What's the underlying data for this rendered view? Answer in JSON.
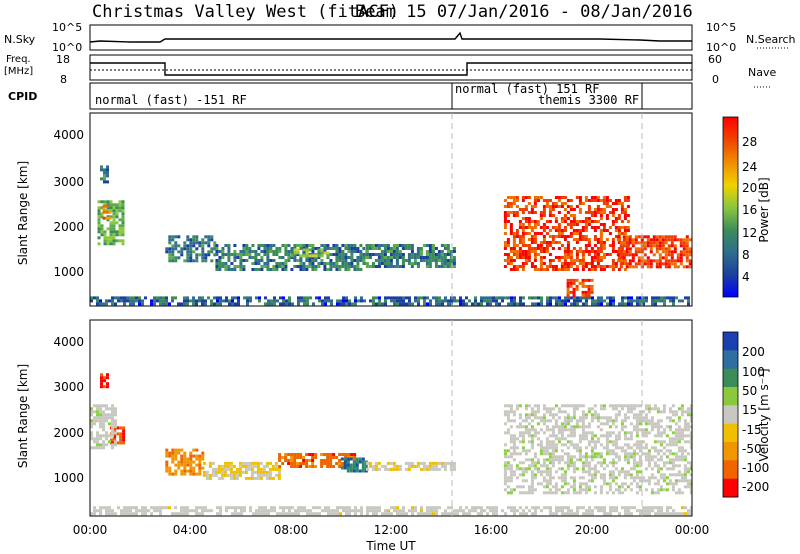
{
  "header": {
    "title_left": "Christmas Valley West (fitACF)",
    "title_right": "Beam 15  07/Jan/2016 - 08/Jan/2016"
  },
  "strip_nsky": {
    "left_label": "N.Sky",
    "ticks_left": [
      "10^5",
      "10^0"
    ],
    "right_label": "N.Search",
    "ticks_right": [
      "10^5",
      "10^0"
    ]
  },
  "strip_freq": {
    "left_label_1": "Freq.",
    "left_label_2": "[MHz]",
    "ticks_left": [
      "18",
      "8"
    ],
    "right_label": "Nave",
    "ticks_right": [
      "60",
      "0"
    ]
  },
  "strip_cpid": {
    "label": "CPID",
    "segments": [
      {
        "text": "normal (fast) -151 RF",
        "start_hour": 0,
        "end_hour": 14.5
      },
      {
        "text": "normal (fast) 151 RF",
        "start_hour": 14.5,
        "end_hour": 22
      },
      {
        "text": "themis 3300 RF",
        "start_hour": 17.8,
        "end_hour": 22
      }
    ]
  },
  "panels": {
    "power": {
      "ylabel": "Slant Range [km]",
      "yticks": [
        "4000",
        "3000",
        "2000",
        "1000"
      ],
      "cbar_label": "Power [dB]",
      "cbar_ticks": [
        "28",
        "24",
        "20",
        "16",
        "12",
        "8",
        "4"
      ]
    },
    "velocity": {
      "ylabel": "Slant Range [km]",
      "yticks": [
        "4000",
        "3000",
        "2000",
        "1000"
      ],
      "cbar_label": "Velocity [m s⁻¹]",
      "cbar_ticks": [
        "200",
        "100",
        "50",
        "15",
        "-15",
        "-50",
        "-100",
        "-200"
      ]
    }
  },
  "xaxis": {
    "label": "Time UT",
    "ticks": [
      "00:00",
      "04:00",
      "08:00",
      "12:00",
      "16:00",
      "20:00",
      "00:00"
    ]
  },
  "colors": {
    "power_scale": [
      "#0000ff",
      "#1a3fa0",
      "#2e6e8e",
      "#3c8c5a",
      "#5aaa50",
      "#8ac83c",
      "#c8d228",
      "#f0d200",
      "#f0a000",
      "#f06e00",
      "#f03c00",
      "#ff0000"
    ],
    "velocity_scale": [
      "#ff0000",
      "#f06400",
      "#f09600",
      "#f0c000",
      "#c8c8c0",
      "#c8c8c0",
      "#8ad23c",
      "#50aa50",
      "#2e8c6e",
      "#1a50a0",
      "#0000ff"
    ]
  },
  "chart_data": {
    "type": "heatmap",
    "title": "Christmas Valley West (fitACF)  Beam 15  07/Jan/2016 - 08/Jan/2016",
    "xlabel": "Time UT",
    "ylabel": "Slant Range [km]",
    "x_range_hours": [
      0,
      24
    ],
    "ylim": [
      180,
      4600
    ],
    "panels": [
      {
        "quantity": "Power [dB]",
        "zlim": [
          0,
          32
        ],
        "echo_regions": [
          {
            "t_start": 0.0,
            "t_end": 24.0,
            "r_start": 200,
            "r_end": 400,
            "value": 6
          },
          {
            "t_start": 0.3,
            "t_end": 1.3,
            "r_start": 1600,
            "r_end": 2600,
            "value": 12
          },
          {
            "t_start": 0.5,
            "t_end": 0.8,
            "r_start": 2200,
            "r_end": 2500,
            "value": 24
          },
          {
            "t_start": 0.4,
            "t_end": 0.7,
            "r_start": 3000,
            "r_end": 3400,
            "value": 8
          },
          {
            "t_start": 3.0,
            "t_end": 5.0,
            "r_start": 1200,
            "r_end": 1800,
            "value": 8
          },
          {
            "t_start": 5.0,
            "t_end": 11.0,
            "r_start": 1000,
            "r_end": 1600,
            "value": 8
          },
          {
            "t_start": 8.0,
            "t_end": 9.5,
            "r_start": 1300,
            "r_end": 1500,
            "value": 14
          },
          {
            "t_start": 11.0,
            "t_end": 14.5,
            "r_start": 1100,
            "r_end": 1600,
            "value": 8
          },
          {
            "t_start": 16.5,
            "t_end": 21.5,
            "r_start": 1000,
            "r_end": 2700,
            "value": 28
          },
          {
            "t_start": 19.0,
            "t_end": 20.0,
            "r_start": 400,
            "r_end": 800,
            "value": 28
          },
          {
            "t_start": 21.0,
            "t_end": 24.0,
            "r_start": 1100,
            "r_end": 1800,
            "value": 28
          }
        ]
      },
      {
        "quantity": "Velocity [m s-1]",
        "zlim": [
          -250,
          250
        ],
        "echo_regions": [
          {
            "t_start": 0.0,
            "t_end": 24.0,
            "r_start": 200,
            "r_end": 400,
            "value": -40
          },
          {
            "t_start": 0.4,
            "t_end": 0.7,
            "r_start": 3100,
            "r_end": 3400,
            "value": -200
          },
          {
            "t_start": 0.8,
            "t_end": 1.3,
            "r_start": 1800,
            "r_end": 2200,
            "value": -200
          },
          {
            "t_start": 0.0,
            "t_end": 1.0,
            "r_start": 1700,
            "r_end": 2700,
            "value": 0
          },
          {
            "t_start": 3.0,
            "t_end": 4.5,
            "r_start": 1100,
            "r_end": 1700,
            "value": -150
          },
          {
            "t_start": 4.5,
            "t_end": 7.5,
            "r_start": 1000,
            "r_end": 1400,
            "value": -70
          },
          {
            "t_start": 7.5,
            "t_end": 10.5,
            "r_start": 1300,
            "r_end": 1600,
            "value": -180
          },
          {
            "t_start": 10.0,
            "t_end": 11.0,
            "r_start": 1200,
            "r_end": 1500,
            "value": 150
          },
          {
            "t_start": 11.0,
            "t_end": 14.5,
            "r_start": 1200,
            "r_end": 1400,
            "value": -60
          },
          {
            "t_start": 16.5,
            "t_end": 24.0,
            "r_start": 700,
            "r_end": 2700,
            "value": 0
          }
        ]
      }
    ]
  }
}
